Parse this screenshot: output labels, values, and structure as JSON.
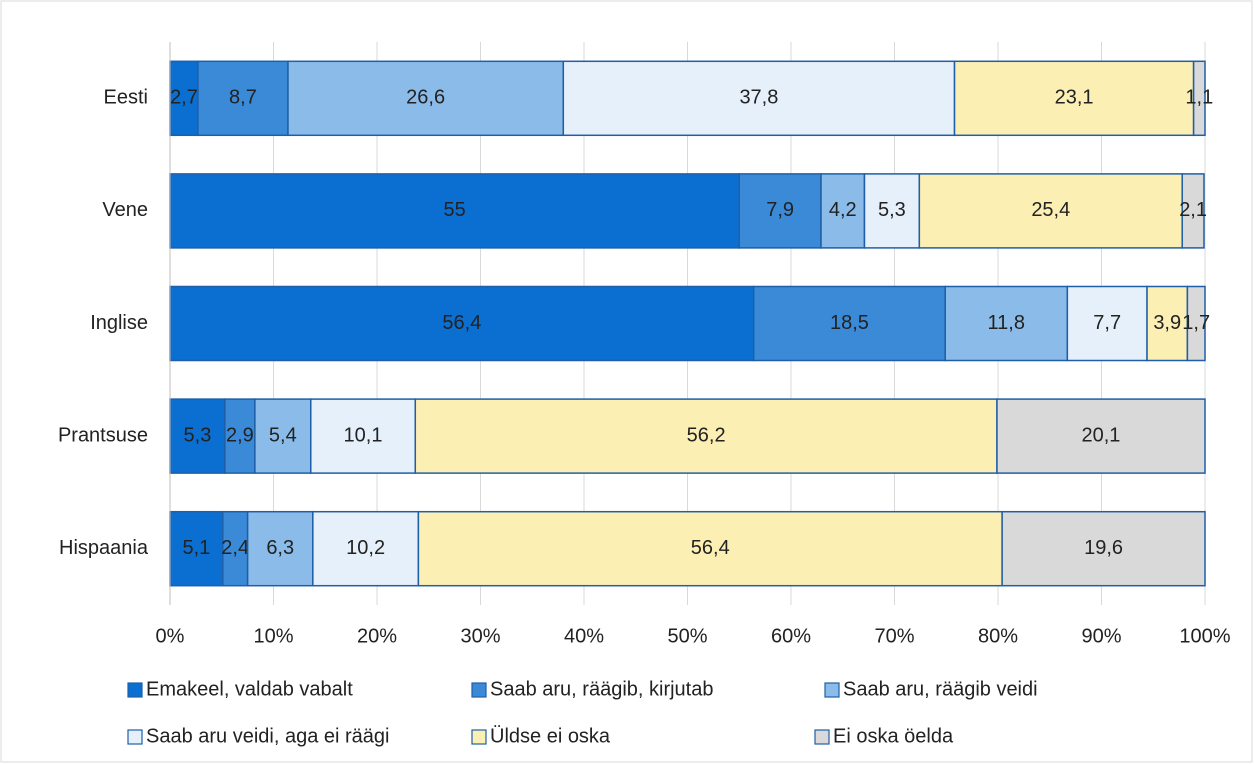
{
  "chart_data": {
    "type": "stacked_bar_horizontal",
    "categories": [
      "Eesti",
      "Vene",
      "Inglise",
      "Prantsuse",
      "Hispaania"
    ],
    "series": [
      {
        "name": "Emakeel, valdab vabalt",
        "color": "#0a6fd0",
        "values": [
          2.7,
          55,
          56.4,
          5.3,
          5.1
        ],
        "value_labels": [
          "2,7",
          "55",
          "56,4",
          "5,3",
          "5,1"
        ]
      },
      {
        "name": "Saab aru, räägib, kirjutab",
        "color": "#3a8ad8",
        "values": [
          8.7,
          7.9,
          18.5,
          2.9,
          2.4
        ],
        "value_labels": [
          "8,7",
          "7,9",
          "18,5",
          "2,9",
          "2,4"
        ]
      },
      {
        "name": "Saab aru, räägib veidi",
        "color": "#8bbbe8",
        "values": [
          26.6,
          4.2,
          11.8,
          5.4,
          6.3
        ],
        "value_labels": [
          "26,6",
          "4,2",
          "11,8",
          "5,4",
          "6,3"
        ]
      },
      {
        "name": "Saab aru veidi, aga ei räägi",
        "color": "#e6f0fa",
        "values": [
          37.8,
          5.3,
          7.7,
          10.1,
          10.2
        ],
        "value_labels": [
          "37,8",
          "5,3",
          "7,7",
          "10,1",
          "10,2"
        ]
      },
      {
        "name": "Üldse ei oska",
        "color": "#fcefb4",
        "values": [
          23.1,
          25.4,
          3.9,
          56.2,
          56.4
        ],
        "value_labels": [
          "23,1",
          "25,4",
          "3,9",
          "56,2",
          "56,4"
        ]
      },
      {
        "name": "Ei oska öelda",
        "color": "#d9d9d9",
        "values": [
          1.1,
          2.1,
          1.7,
          20.1,
          19.6
        ],
        "value_labels": [
          "1,1",
          "2,1",
          "1,7",
          "20,1",
          "19,6"
        ]
      }
    ],
    "xlim": [
      0,
      100
    ],
    "xticks": [
      {
        "value": 0,
        "label": "0%"
      },
      {
        "value": 10,
        "label": "10%"
      },
      {
        "value": 20,
        "label": "20%"
      },
      {
        "value": 30,
        "label": "30%"
      },
      {
        "value": 40,
        "label": "40%"
      },
      {
        "value": 50,
        "label": "50%"
      },
      {
        "value": 60,
        "label": "60%"
      },
      {
        "value": 70,
        "label": "70%"
      },
      {
        "value": 80,
        "label": "80%"
      },
      {
        "value": 90,
        "label": "90%"
      },
      {
        "value": 100,
        "label": "100%"
      }
    ],
    "grid": true,
    "legend": "bottom"
  }
}
